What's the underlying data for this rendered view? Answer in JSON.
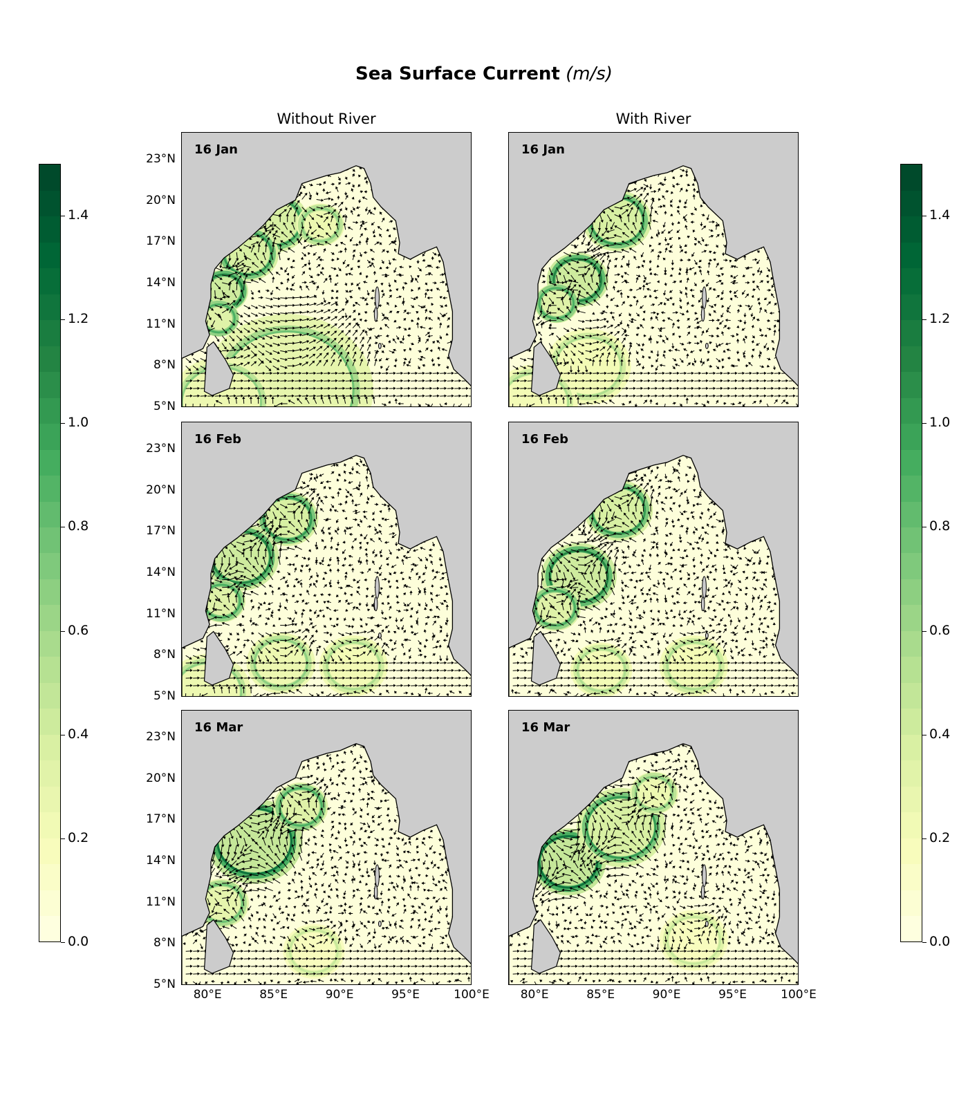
{
  "figure": {
    "title_bold": "Sea Surface Current",
    "title_unit": "(m/s)",
    "columns": [
      "Without River",
      "With River"
    ],
    "rows": [
      "16 Jan",
      "16 Feb",
      "16 Mar"
    ],
    "colormap": "YlGn",
    "colors": {
      "land": "#cccccc",
      "low": "#ffffe5",
      "high": "#004529"
    }
  },
  "chart_data": {
    "type": "heatmap",
    "title": "Sea Surface Current (m/s)",
    "variable": "sea surface current speed with velocity vectors",
    "columns": [
      "Without River",
      "With River"
    ],
    "panels": [
      {
        "label": "16 Jan",
        "column": "Without River"
      },
      {
        "label": "16 Jan",
        "column": "With River"
      },
      {
        "label": "16 Feb",
        "column": "Without River"
      },
      {
        "label": "16 Feb",
        "column": "With River"
      },
      {
        "label": "16 Mar",
        "column": "Without River"
      },
      {
        "label": "16 Mar",
        "column": "With River"
      }
    ],
    "lon_ticks": [
      "80°E",
      "85°E",
      "90°E",
      "95°E",
      "100°E"
    ],
    "lat_ticks": [
      "23°N",
      "20°N",
      "17°N",
      "14°N",
      "11°N",
      "8°N",
      "5°N"
    ],
    "lon_range": [
      78,
      100
    ],
    "lat_range": [
      5,
      25
    ],
    "colorbar": {
      "min": 0.0,
      "max": 1.5,
      "ticks": [
        "0.0",
        "0.2",
        "0.4",
        "0.6",
        "0.8",
        "1.0",
        "1.2",
        "1.4"
      ],
      "tick_values": [
        0.0,
        0.2,
        0.4,
        0.6,
        0.8,
        1.0,
        1.2,
        1.4
      ]
    }
  }
}
